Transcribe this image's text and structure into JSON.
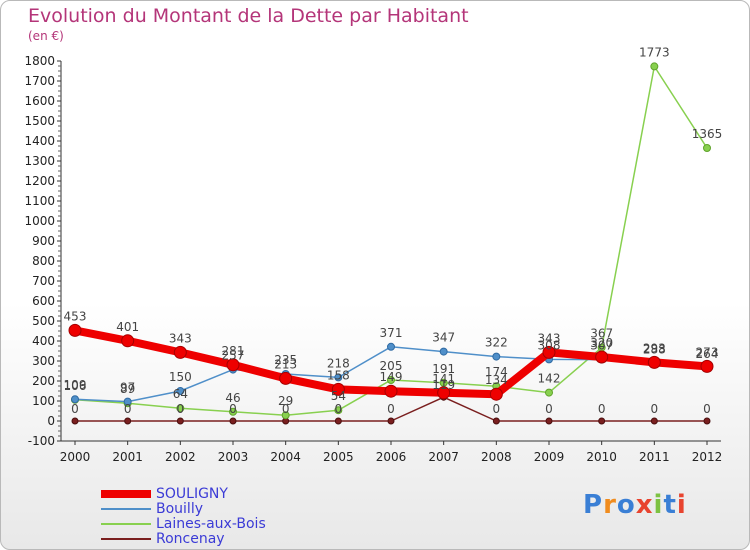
{
  "chart_data": {
    "type": "line",
    "title": "Evolution du Montant de la Dette par Habitant",
    "subtitle": "(en €)",
    "x": [
      "2000",
      "2001",
      "2002",
      "2003",
      "2004",
      "2005",
      "2006",
      "2007",
      "2008",
      "2009",
      "2010",
      "2011",
      "2012"
    ],
    "ylim": [
      -100,
      1800
    ],
    "yticks": [
      -100,
      0,
      100,
      200,
      300,
      400,
      500,
      600,
      700,
      800,
      900,
      1000,
      1100,
      1200,
      1300,
      1400,
      1500,
      1600,
      1700,
      1800
    ],
    "grid": false,
    "legend_position": "bottom-left",
    "series": [
      {
        "name": "SOULIGNY",
        "color": "#ee0000",
        "values": [
          453,
          401,
          343,
          281,
          213,
          158,
          149,
          141,
          134,
          343,
          320,
          293,
          273
        ]
      },
      {
        "name": "Bouilly",
        "color": "#4f8fc9",
        "values": [
          109,
          97,
          150,
          257,
          235,
          218,
          371,
          347,
          322,
          308,
          307,
          288,
          264
        ]
      },
      {
        "name": "Laines-aux-Bois",
        "color": "#88d04f",
        "values": [
          106,
          89,
          64,
          46,
          29,
          54,
          205,
          191,
          174,
          142,
          367,
          1773,
          1365
        ]
      },
      {
        "name": "Roncenay",
        "color": "#7a1f1f",
        "values": [
          0,
          0,
          0,
          0,
          0,
          0,
          0,
          119,
          0,
          0,
          0,
          0,
          0
        ]
      }
    ],
    "labels": [
      {
        "series": 0,
        "texts": [
          "453",
          "401",
          "343",
          "281",
          "213",
          "158",
          "149",
          "141",
          "134",
          "343",
          "320",
          "293",
          "273"
        ]
      },
      {
        "series": 1,
        "texts": [
          "109",
          "97",
          "150",
          "257",
          "235",
          "218",
          "371",
          "347",
          "322",
          "308",
          "307",
          "288",
          "264"
        ]
      },
      {
        "series": 2,
        "texts": [
          "106",
          "89",
          "64",
          "46",
          "29",
          "54",
          "205",
          "191",
          "174",
          "142",
          "367",
          "1773",
          "1365"
        ]
      },
      {
        "series": 3,
        "texts": [
          "0",
          "0",
          "0",
          "0",
          "0",
          "0",
          "0",
          "119",
          "0",
          "0",
          "0",
          "0",
          "0"
        ]
      }
    ]
  },
  "legend": [
    "SOULIGNY",
    "Bouilly",
    "Laines-aux-Bois",
    "Roncenay"
  ],
  "logo": {
    "text": "Proxiti",
    "letter_colors": [
      "#3a7fd5",
      "#f08c1e",
      "#3a7fd5",
      "#e8442f",
      "#7dc242",
      "#3a7fd5",
      "#e8442f"
    ]
  }
}
